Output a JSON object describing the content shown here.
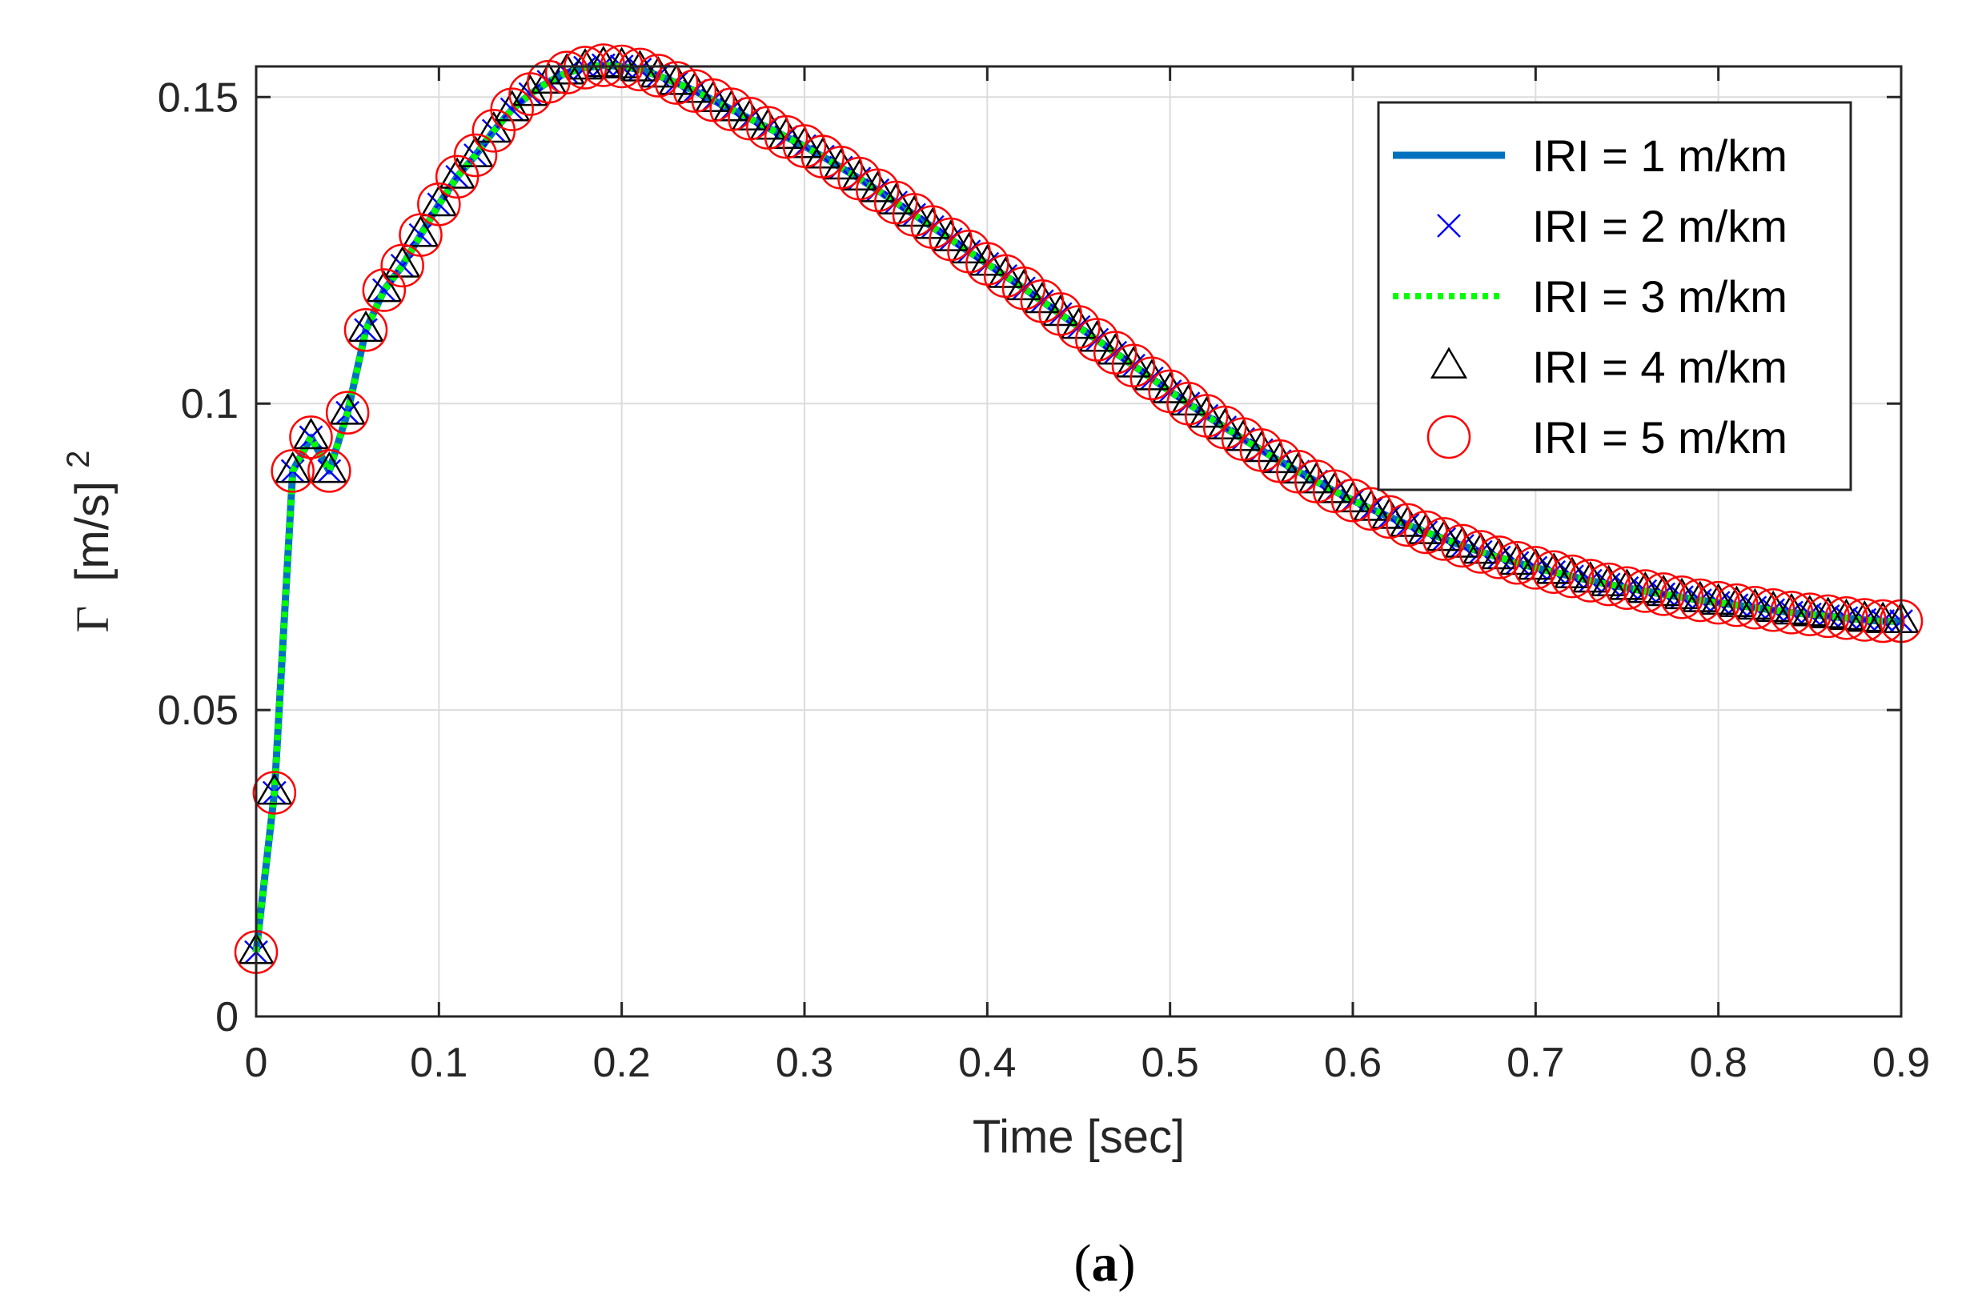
{
  "colors": {
    "iri1": "#0072BD",
    "iri2": "#0000FF",
    "iri3": "#00FF00",
    "iri4": "#000000",
    "iri5": "#FF0000",
    "grid": "#DCDCDC",
    "axes": "#262626"
  },
  "panel_label": {
    "open": "(",
    "letter": "a",
    "close": ")"
  },
  "chart_data": {
    "type": "line",
    "xlabel": "Time [sec]",
    "ylabel": {
      "symbol": "Γ",
      "unit": "[m/s]",
      "exponent": "2"
    },
    "xlim": [
      0,
      0.9
    ],
    "ylim": [
      0,
      0.155
    ],
    "xticks": [
      0,
      0.1,
      0.2,
      0.3,
      0.4,
      0.5,
      0.6,
      0.7,
      0.8,
      0.9
    ],
    "xtick_labels": [
      "0",
      "0.1",
      "0.2",
      "0.3",
      "0.4",
      "0.5",
      "0.6",
      "0.7",
      "0.8",
      "0.9"
    ],
    "yticks": [
      0,
      0.05,
      0.1,
      0.15
    ],
    "ytick_labels": [
      "0",
      "0.05",
      "0.1",
      "0.15"
    ],
    "grid": true,
    "legend_position": "top-right",
    "x": [
      0,
      0.01,
      0.02,
      0.03,
      0.04,
      0.05,
      0.06,
      0.07,
      0.08,
      0.09,
      0.1,
      0.11,
      0.12,
      0.13,
      0.14,
      0.15,
      0.16,
      0.17,
      0.18,
      0.19,
      0.2,
      0.21,
      0.22,
      0.23,
      0.24,
      0.25,
      0.26,
      0.27,
      0.28,
      0.29,
      0.3,
      0.31,
      0.32,
      0.33,
      0.34,
      0.35,
      0.36,
      0.37,
      0.38,
      0.39,
      0.4,
      0.41,
      0.42,
      0.43,
      0.44,
      0.45,
      0.46,
      0.47,
      0.48,
      0.49,
      0.5,
      0.51,
      0.52,
      0.53,
      0.54,
      0.55,
      0.56,
      0.57,
      0.58,
      0.59,
      0.6,
      0.61,
      0.62,
      0.63,
      0.64,
      0.65,
      0.66,
      0.67,
      0.68,
      0.69,
      0.7,
      0.71,
      0.72,
      0.73,
      0.74,
      0.75,
      0.76,
      0.77,
      0.78,
      0.79,
      0.8,
      0.81,
      0.82,
      0.83,
      0.84,
      0.85,
      0.86,
      0.87,
      0.88,
      0.89,
      0.9
    ],
    "y": [
      0.0105,
      0.0365,
      0.089,
      0.0945,
      0.089,
      0.0985,
      0.112,
      0.1185,
      0.1225,
      0.1275,
      0.1325,
      0.137,
      0.1405,
      0.1445,
      0.148,
      0.1505,
      0.1525,
      0.154,
      0.1548,
      0.1552,
      0.155,
      0.1545,
      0.1535,
      0.1523,
      0.151,
      0.1495,
      0.148,
      0.1465,
      0.145,
      0.1435,
      0.142,
      0.1403,
      0.1385,
      0.1367,
      0.1348,
      0.1328,
      0.1308,
      0.1288,
      0.1268,
      0.1248,
      0.1228,
      0.1208,
      0.1188,
      0.1167,
      0.1146,
      0.1125,
      0.1104,
      0.1083,
      0.1062,
      0.1041,
      0.102,
      0.1,
      0.098,
      0.0961,
      0.0942,
      0.0924,
      0.0906,
      0.0889,
      0.0873,
      0.0857,
      0.0842,
      0.0828,
      0.0815,
      0.0802,
      0.079,
      0.0779,
      0.0768,
      0.0758,
      0.0749,
      0.074,
      0.0732,
      0.0725,
      0.0718,
      0.0711,
      0.0705,
      0.0699,
      0.0694,
      0.0689,
      0.0684,
      0.0679,
      0.0675,
      0.0671,
      0.0667,
      0.0663,
      0.0659,
      0.0656,
      0.0653,
      0.065,
      0.0647,
      0.0645,
      0.0645
    ],
    "series": [
      {
        "name": "IRI = 1 m/km",
        "style": "solid-line",
        "color": "#0072BD"
      },
      {
        "name": "IRI = 2 m/km",
        "style": "x-marker",
        "color": "#0000FF"
      },
      {
        "name": "IRI = 3 m/km",
        "style": "dotted-line",
        "color": "#00FF00"
      },
      {
        "name": "IRI = 4 m/km",
        "style": "triangle-marker",
        "color": "#000000"
      },
      {
        "name": "IRI = 5 m/km",
        "style": "circle-marker",
        "color": "#FF0000"
      }
    ]
  }
}
